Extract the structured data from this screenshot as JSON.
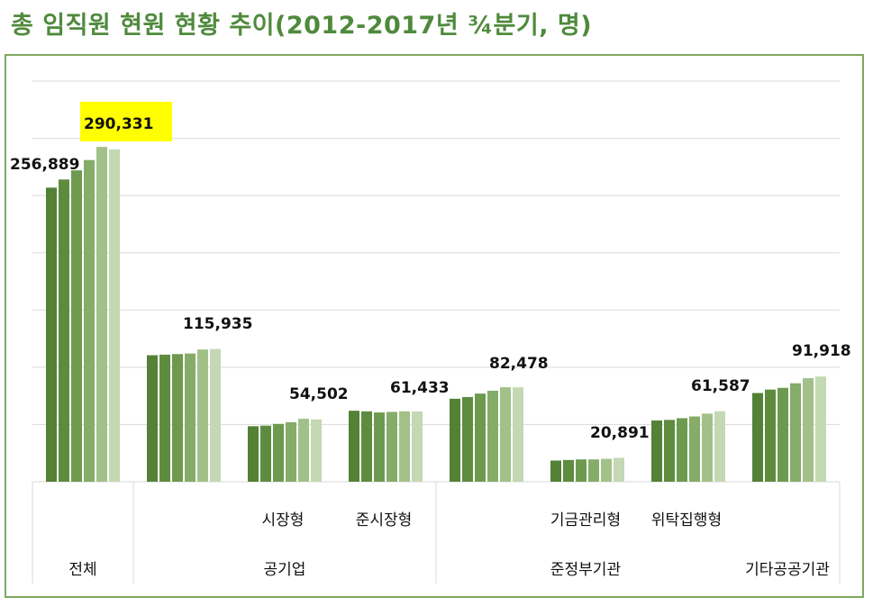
{
  "title": "총 임직원 현원 현황 추이(2012-2017년 ¾분기, 명)",
  "colors": {
    "title": "#4f8a3c",
    "frame": "#7fa860",
    "grid": "#d9d9d9",
    "highlight": "#ffff00",
    "series": [
      "#538135",
      "#5e8c3f",
      "#6e9a4f",
      "#85ac68",
      "#a2c189",
      "#c4d8b4"
    ]
  },
  "chart_data": {
    "type": "bar",
    "title": "총 임직원 현원 현황 추이(2012-2017년 ¾분기, 명)",
    "xlabel": "",
    "ylabel": "",
    "ylim": [
      0,
      350000
    ],
    "grid": true,
    "legend": "none",
    "categories": [
      "전체",
      "시장형",
      "준시장형",
      "기금관리형",
      "위탁집행형",
      "기타공공기관"
    ],
    "category_level2": [
      {
        "label": "",
        "span": [
          0,
          0
        ]
      },
      {
        "label": "공기업",
        "span": [
          1,
          2
        ]
      },
      {
        "label": "",
        "span": [
          3,
          3
        ]
      },
      {
        "label": "",
        "span": [
          4,
          4
        ]
      },
      {
        "label": "",
        "span": [
          5,
          5
        ]
      }
    ],
    "category_level1": [
      {
        "label": "전체",
        "span": [
          0,
          0
        ]
      },
      {
        "label": "공기업",
        "span": [
          1,
          3
        ]
      },
      {
        "label": "준정부기관",
        "span": [
          4,
          6
        ]
      },
      {
        "label": "기타공공기관",
        "span": [
          7,
          7
        ]
      }
    ],
    "groups": [
      {
        "label1": "전체",
        "label2": "",
        "values": [
          256889,
          264000,
          272000,
          281000,
          292500,
          290331
        ]
      },
      {
        "label1": "",
        "label2": "",
        "values": [
          110500,
          111000,
          111500,
          112000,
          115500,
          115935
        ]
      },
      {
        "label1": "시장형",
        "label2": "",
        "values": [
          48500,
          49000,
          50500,
          52000,
          55000,
          54502
        ]
      },
      {
        "label1": "준시장형",
        "label2": "",
        "values": [
          62000,
          61500,
          60500,
          61000,
          61500,
          61433
        ]
      },
      {
        "label1": "",
        "label2": "",
        "values": [
          72500,
          74000,
          77000,
          79500,
          82500,
          82478
        ]
      },
      {
        "label1": "기금관리형",
        "label2": "",
        "values": [
          18500,
          19000,
          19500,
          19500,
          20000,
          20891
        ]
      },
      {
        "label1": "위탁집행형",
        "label2": "",
        "values": [
          53500,
          54000,
          55500,
          57000,
          59500,
          61587
        ]
      },
      {
        "label1": "",
        "label2": "",
        "values": [
          77500,
          80500,
          82000,
          86000,
          90500,
          91918
        ]
      }
    ],
    "data_labels": [
      "256,889",
      "290,331",
      "115,935",
      "54,502",
      "61,433",
      "82,478",
      "20,891",
      "61,587",
      "91,918"
    ],
    "highlighted_label": "290,331"
  }
}
